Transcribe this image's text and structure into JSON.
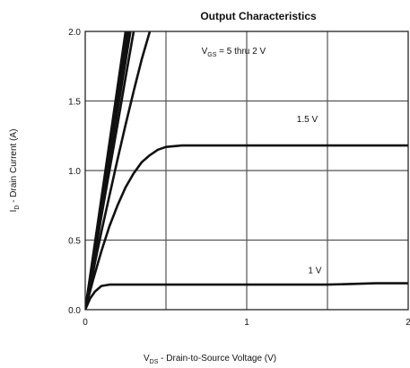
{
  "chart_data": {
    "type": "line",
    "title": "Output Characteristics",
    "xlabel": {
      "main": "V",
      "sub": "DS",
      "rest": " -  Drain-to-Source Voltage (V)"
    },
    "ylabel": {
      "main": "I",
      "sub": "D",
      "rest": " -  Drain Current (A)"
    },
    "xlim": [
      0,
      2
    ],
    "ylim": [
      0,
      2
    ],
    "grid": true,
    "x_ticks": [
      0,
      0.5,
      1,
      1.5,
      2
    ],
    "x_tick_labels": [
      "0",
      "",
      "1",
      "",
      "2"
    ],
    "y_ticks": [
      0,
      0.5,
      1,
      1.5,
      2
    ],
    "y_tick_labels": [
      "0.0",
      "0.5",
      "1.0",
      "1.5",
      "2.0"
    ],
    "annotations": [
      {
        "main": "V",
        "sub": "GS",
        "rest": " = 5 thru 2 V",
        "x": 0.72,
        "y": 1.84
      },
      {
        "main": "1.5 V",
        "sub": "",
        "rest": "",
        "x": 1.31,
        "y": 1.35
      },
      {
        "main": "1 V",
        "sub": "",
        "rest": "",
        "x": 1.38,
        "y": 0.26
      }
    ],
    "series": [
      {
        "x": [
          0,
          0.05,
          0.1,
          0.15,
          0.2,
          0.25
        ],
        "y": [
          0,
          0.4,
          0.8,
          1.2,
          1.6,
          2.0
        ]
      },
      {
        "x": [
          0,
          0.05,
          0.1,
          0.15,
          0.2,
          0.26
        ],
        "y": [
          0,
          0.38,
          0.76,
          1.14,
          1.52,
          2.0
        ]
      },
      {
        "x": [
          0,
          0.05,
          0.1,
          0.15,
          0.2,
          0.27
        ],
        "y": [
          0,
          0.37,
          0.74,
          1.11,
          1.48,
          2.0
        ]
      },
      {
        "x": [
          0,
          0.05,
          0.1,
          0.15,
          0.2,
          0.28
        ],
        "y": [
          0,
          0.36,
          0.71,
          1.07,
          1.43,
          2.0
        ]
      },
      {
        "x": [
          0,
          0.05,
          0.1,
          0.15,
          0.2,
          0.25,
          0.3
        ],
        "y": [
          0,
          0.33,
          0.67,
          1.0,
          1.33,
          1.67,
          2.0
        ]
      },
      {
        "x": [
          0,
          0.05,
          0.1,
          0.15,
          0.2,
          0.25,
          0.3,
          0.35,
          0.4
        ],
        "y": [
          0,
          0.28,
          0.56,
          0.82,
          1.08,
          1.33,
          1.57,
          1.8,
          2.0
        ]
      },
      {
        "x": [
          0,
          0.05,
          0.1,
          0.15,
          0.2,
          0.25,
          0.3,
          0.35,
          0.4,
          0.45,
          0.5,
          0.6,
          0.8,
          1.0,
          1.2,
          1.5,
          2.0
        ],
        "y": [
          0,
          0.22,
          0.42,
          0.6,
          0.75,
          0.88,
          0.98,
          1.06,
          1.11,
          1.15,
          1.17,
          1.18,
          1.18,
          1.18,
          1.18,
          1.18,
          1.18
        ]
      },
      {
        "x": [
          0,
          0.03,
          0.06,
          0.1,
          0.15,
          0.2,
          0.3,
          0.5,
          0.8,
          1.0,
          1.2,
          1.5,
          1.8,
          2.0
        ],
        "y": [
          0,
          0.08,
          0.13,
          0.17,
          0.18,
          0.18,
          0.18,
          0.18,
          0.18,
          0.18,
          0.18,
          0.18,
          0.19,
          0.19
        ]
      }
    ]
  }
}
